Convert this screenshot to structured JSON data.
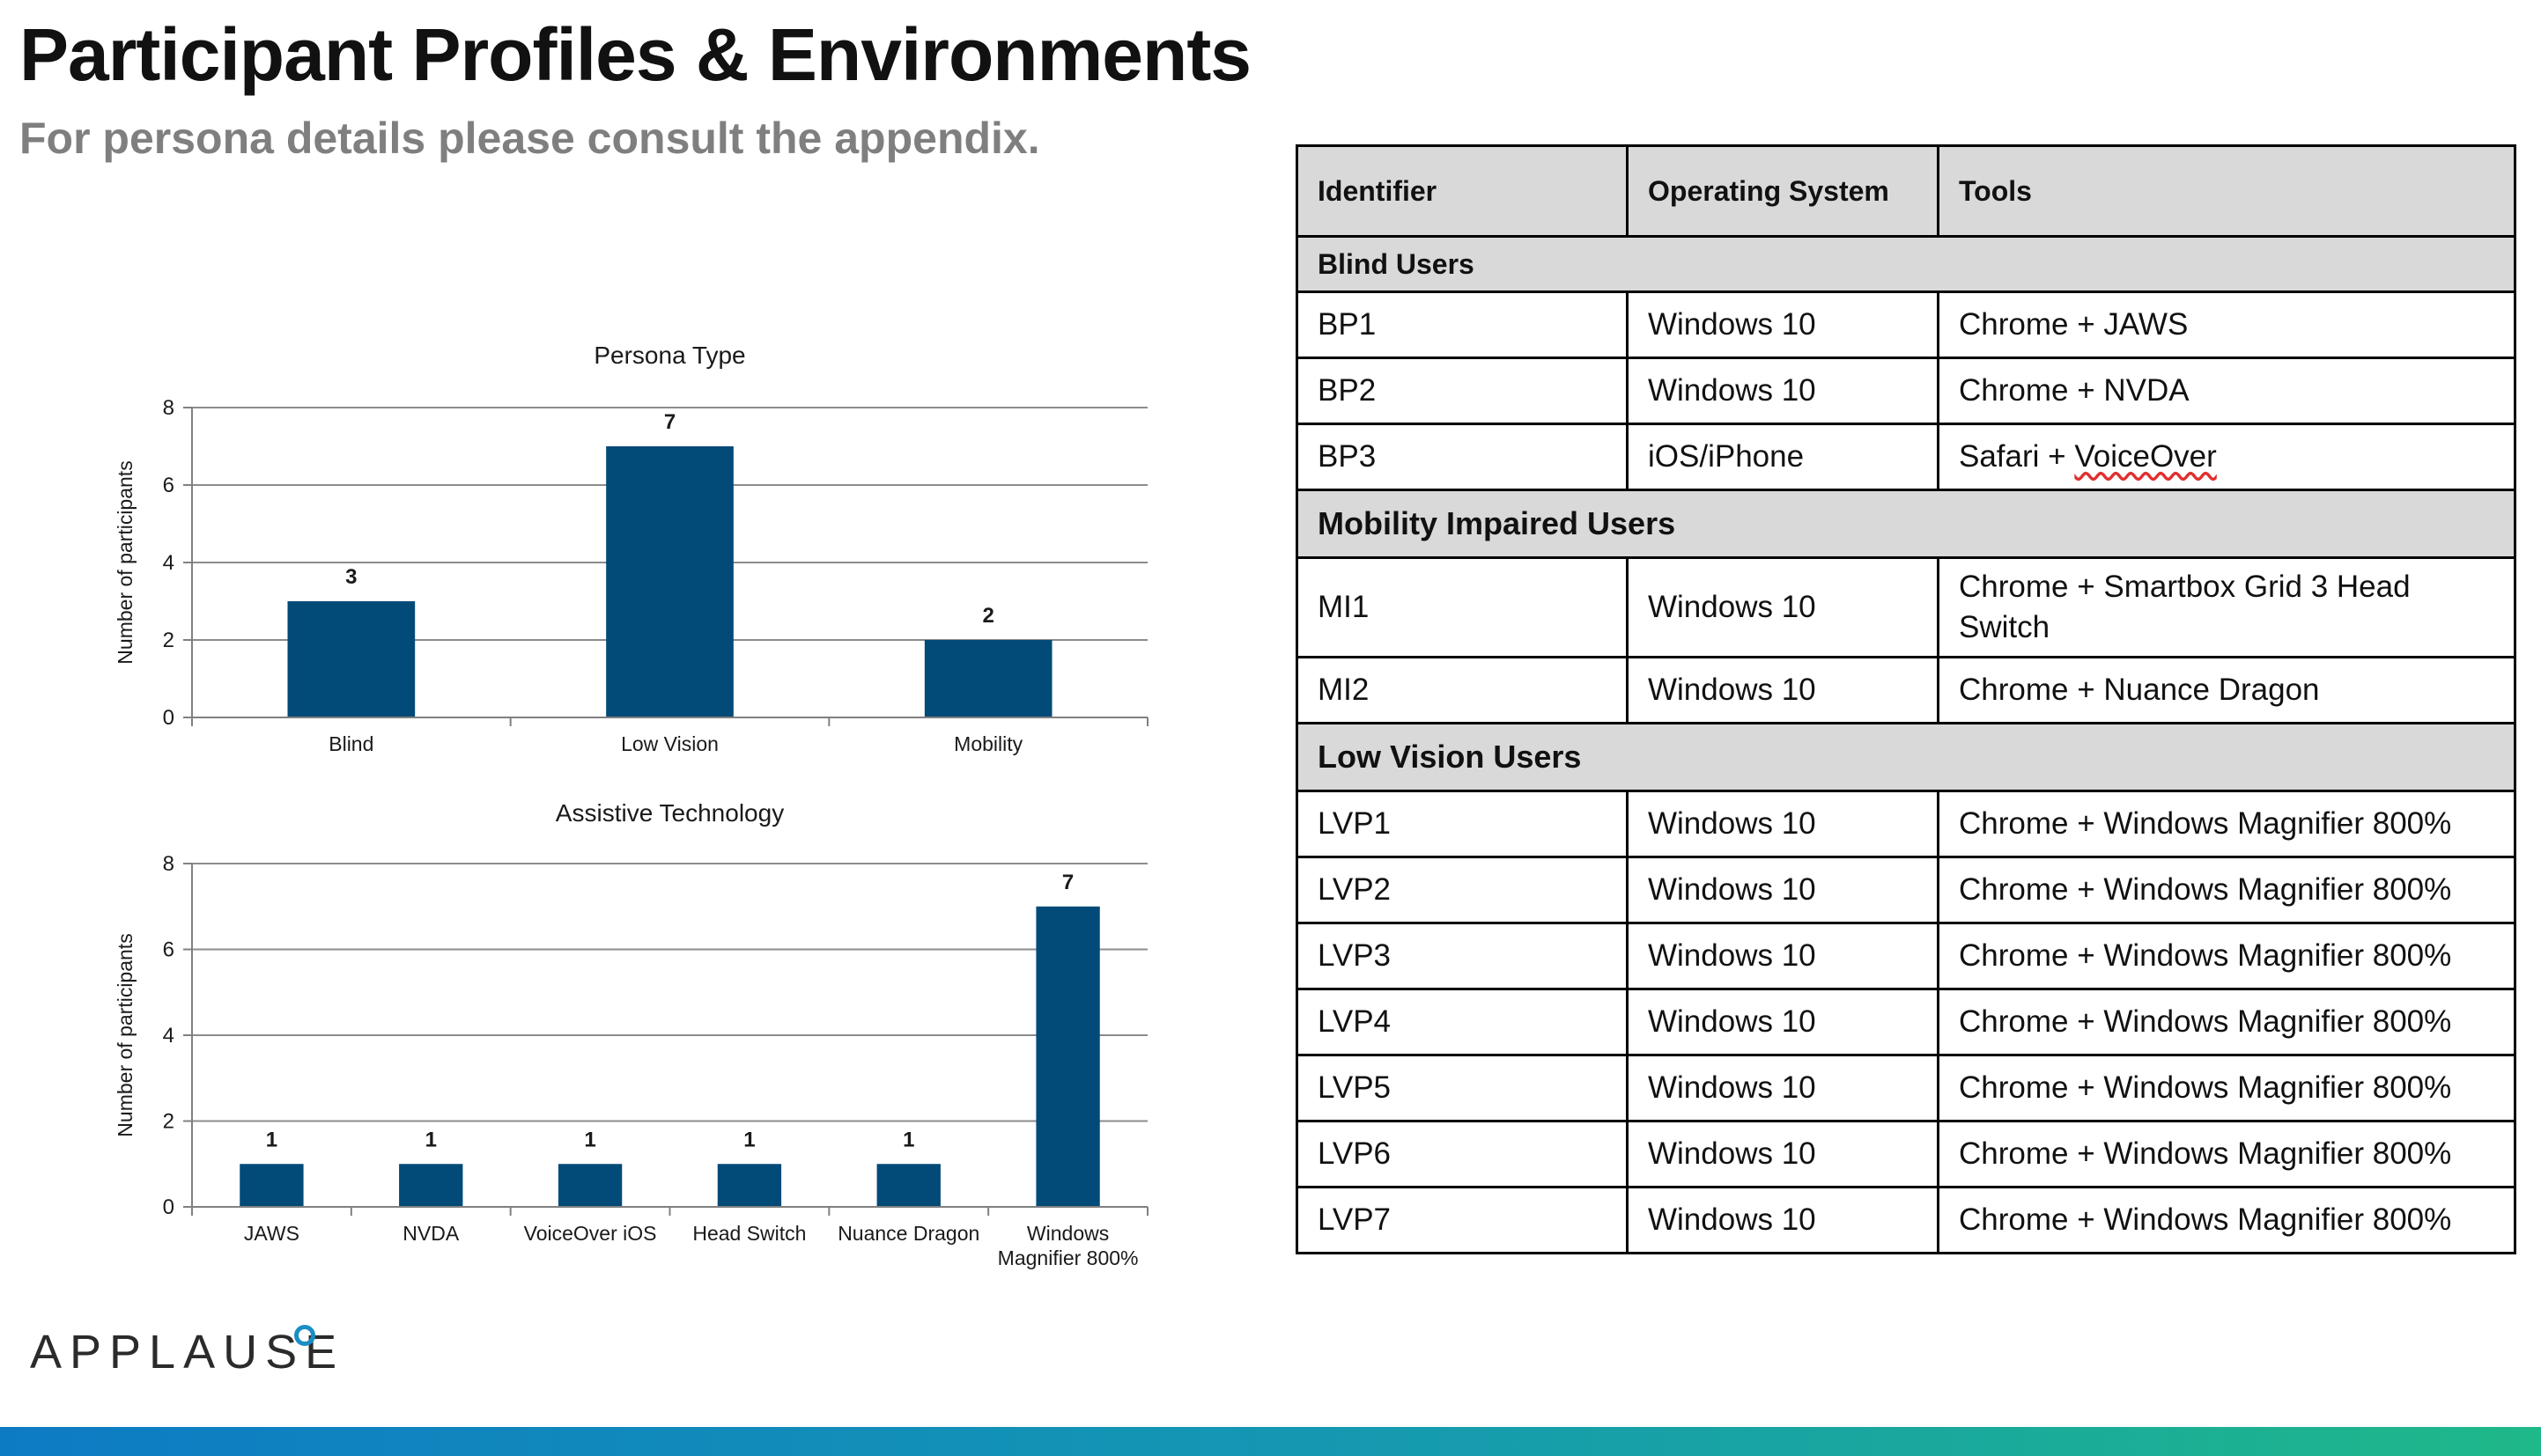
{
  "header": {
    "title": "Participant Profiles & Environments",
    "subtitle": "For persona details please consult the appendix."
  },
  "colors": {
    "bar": "#024a78",
    "title_text": "#111111",
    "subtitle_text": "#7f7f7f",
    "table_header_bg": "#d9d9d9",
    "bar_gradient_start": "#0d7bc4",
    "bar_gradient_end": "#1fb889",
    "logo_ring": "#1a8fc4"
  },
  "chart_data": [
    {
      "type": "bar",
      "title": "Persona Type",
      "ylabel": "Number of participants",
      "xlabel": "",
      "categories": [
        "Blind",
        "Low Vision",
        "Mobility"
      ],
      "values": [
        3,
        7,
        2
      ],
      "ylim": [
        0,
        8
      ],
      "yticks": [
        0,
        2,
        4,
        6,
        8
      ],
      "grid": true,
      "data_labels": true
    },
    {
      "type": "bar",
      "title": "Assistive Technology",
      "ylabel": "Number of participants",
      "xlabel": "",
      "categories": [
        "JAWS",
        "NVDA",
        "VoiceOver iOS",
        "Head Switch",
        "Nuance Dragon",
        "Windows Magnifier 800%"
      ],
      "values": [
        1,
        1,
        1,
        1,
        1,
        7
      ],
      "ylim": [
        0,
        8
      ],
      "yticks": [
        0,
        2,
        4,
        6,
        8
      ],
      "grid": true,
      "data_labels": true
    }
  ],
  "table": {
    "headers": [
      "Identifier",
      "Operating System",
      "Tools"
    ],
    "groups": [
      {
        "label": "Blind Users",
        "rows": [
          [
            "BP1",
            "Windows 10",
            "Chrome + JAWS"
          ],
          [
            "BP2",
            "Windows 10",
            "Chrome + NVDA"
          ],
          [
            "BP3",
            "iOS/iPhone",
            "Safari + VoiceOver"
          ]
        ]
      },
      {
        "label": "Mobility Impaired Users",
        "rows": [
          [
            "MI1",
            "Windows 10",
            "Chrome + Smartbox Grid 3 Head Switch"
          ],
          [
            "MI2",
            "Windows 10",
            "Chrome + Nuance Dragon"
          ]
        ]
      },
      {
        "label": "Low Vision Users",
        "rows": [
          [
            "LVP1",
            "Windows 10",
            "Chrome + Windows Magnifier 800%"
          ],
          [
            "LVP2",
            "Windows 10",
            "Chrome + Windows Magnifier 800%"
          ],
          [
            "LVP3",
            "Windows 10",
            "Chrome + Windows Magnifier 800%"
          ],
          [
            "LVP4",
            "Windows 10",
            "Chrome + Windows Magnifier 800%"
          ],
          [
            "LVP5",
            "Windows 10",
            "Chrome + Windows Magnifier 800%"
          ],
          [
            "LVP6",
            "Windows 10",
            "Chrome + Windows Magnifier 800%"
          ],
          [
            "LVP7",
            "Windows 10",
            "Chrome + Windows Magnifier 800%"
          ]
        ]
      }
    ],
    "safari_voiceover": {
      "prefix": "Safari + ",
      "underlined": "VoiceOver"
    }
  },
  "logo": {
    "text": "APPLAUSE"
  }
}
